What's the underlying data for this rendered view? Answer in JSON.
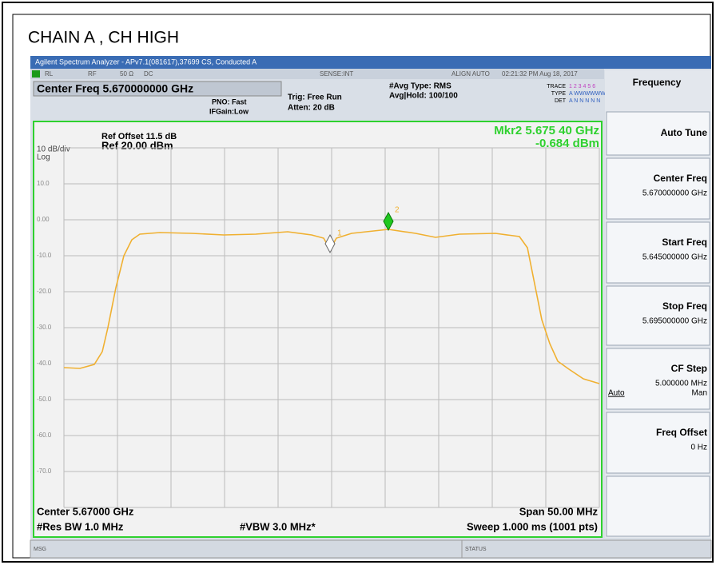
{
  "header": {
    "title": "CHAIN A  , CH HIGH"
  },
  "window": {
    "title": "Agilent Spectrum Analyzer - APv7.1(081617),37699 CS, Conducted A",
    "status_bar": [
      "RL",
      "RF",
      "50 Ω",
      "DC",
      "SENSE:INT",
      "ALIGN AUTO",
      "02:21:32 PM Aug 18, 2017"
    ],
    "center_freq": "Center Freq 5.670000000 GHz",
    "pno": "PNO: Fast",
    "ifgain": "IFGain:Low",
    "trig": "Trig: Free Run",
    "atten": "Atten: 20 dB",
    "avg_type": "#Avg Type: RMS",
    "avg_hold": "Avg|Hold: 100/100",
    "trace_labels": [
      "TRACE",
      "TYPE",
      "DET"
    ],
    "trace_values": [
      "1 2 3 4 5 6",
      "A WWWWWW",
      "A N N N N N"
    ]
  },
  "plot": {
    "ref_offset": "Ref Offset 11.5 dB",
    "ref_level": "Ref 20.00 dBm",
    "scale": "10 dB/div",
    "scale_type": "Log",
    "marker_freq": "Mkr2 5.675 40 GHz",
    "marker_level": "-0.684 dBm",
    "y_labels": [
      "10.0",
      "0.00",
      "-10.0",
      "-20.0",
      "-30.0",
      "-40.0",
      "-50.0",
      "-60.0",
      "-70.0"
    ],
    "markers": [
      "1",
      "2"
    ]
  },
  "footer": {
    "center": "Center 5.67000 GHz",
    "span": "Span 50.00 MHz",
    "res_bw": "#Res BW 1.0 MHz",
    "vbw": "#VBW 3.0 MHz*",
    "sweep": "Sweep  1.000 ms (1001 pts)",
    "msg": "MSG",
    "status": "STATUS"
  },
  "softkeys": {
    "menu": "Frequency",
    "keys": [
      {
        "label": "Auto Tune"
      },
      {
        "label": "Center Freq",
        "value": "5.670000000 GHz"
      },
      {
        "label": "Start Freq",
        "value": "5.645000000 GHz"
      },
      {
        "label": "Stop Freq",
        "value": "5.695000000 GHz"
      },
      {
        "label": "CF Step",
        "value": "5.000000 MHz",
        "options": [
          "Auto",
          "Man"
        ]
      },
      {
        "label": "Freq Offset",
        "value": "0 Hz"
      }
    ]
  }
}
